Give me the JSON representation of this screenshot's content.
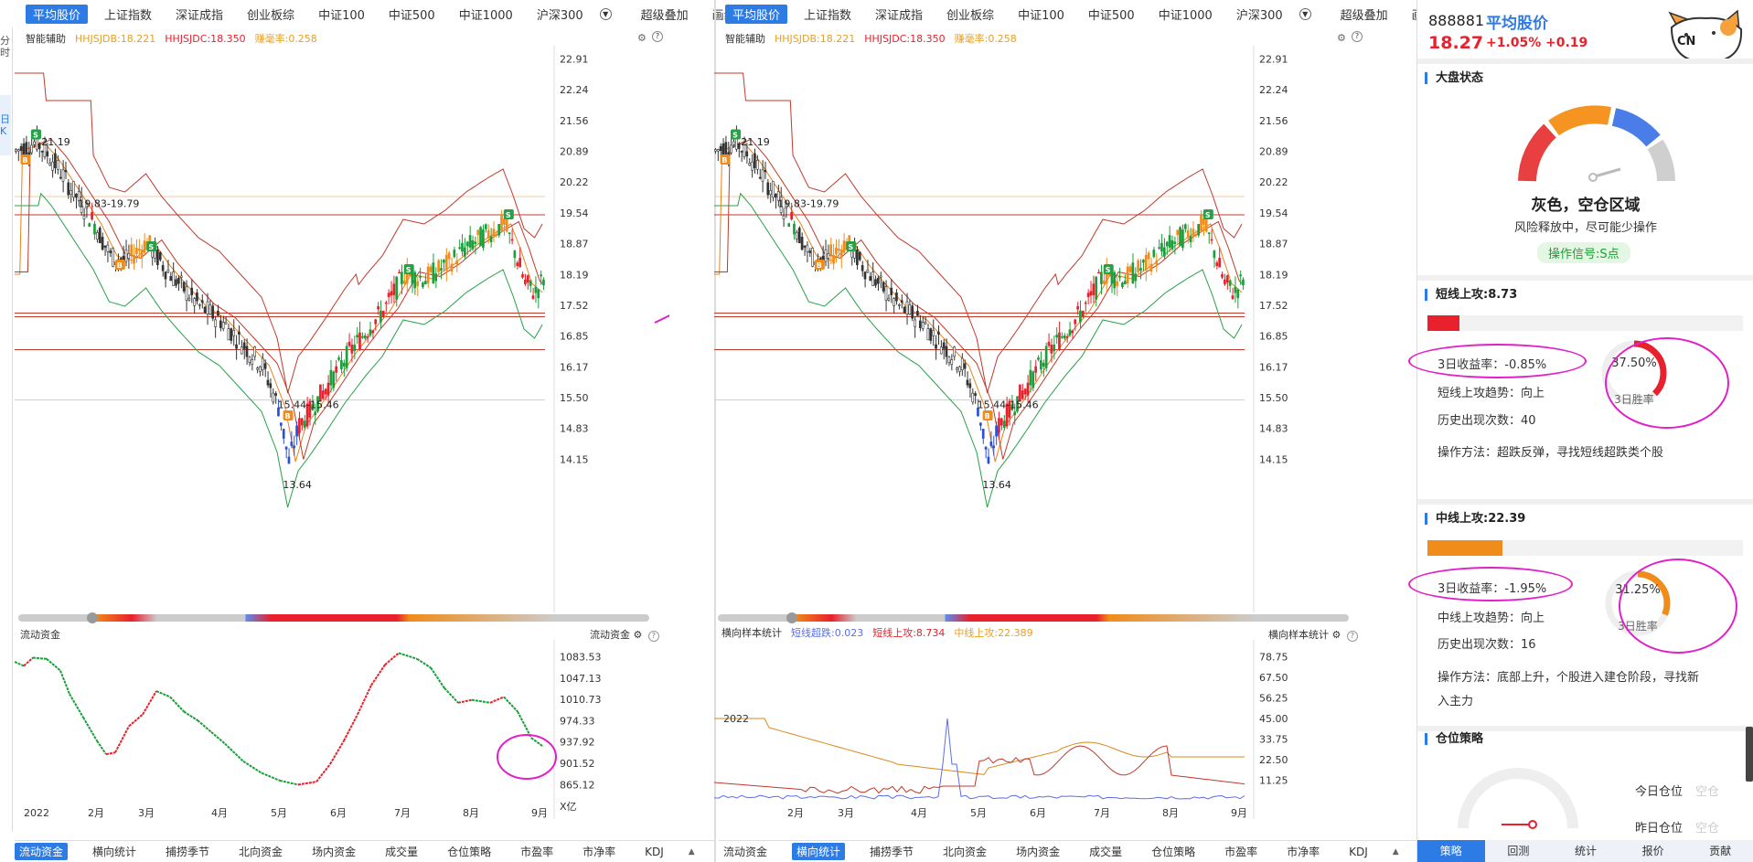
{
  "left_strip": {
    "fen_shi": "分时",
    "ri_k": "日K"
  },
  "panel1": {
    "tabs": [
      "平均股价",
      "上证指数",
      "深证成指",
      "创业板综",
      "中证100",
      "中证500",
      "中证1000",
      "沪深300"
    ],
    "extra": [
      "超级叠加",
      "画线"
    ],
    "indicator": {
      "name": "智能辅助",
      "a": "HHJSJDB:18.221",
      "b": "HHJSJDC:18.350",
      "c": "赚毫率:0.258"
    },
    "price_ticks": [
      "22.91",
      "22.24",
      "21.56",
      "20.89",
      "20.22",
      "19.54",
      "18.87",
      "18.19",
      "17.52",
      "16.85",
      "16.17",
      "15.50",
      "14.83",
      "14.15"
    ],
    "annotations": {
      "high": "21.19",
      "range1": "19.83-19.79",
      "range2": "15.44-15.46",
      "low": "13.64"
    },
    "sub_title_left": "流动资金",
    "sub_title_right": "流动资金",
    "sub_ticks": [
      "1083.53",
      "1047.13",
      "1010.73",
      "974.33",
      "937.92",
      "901.52",
      "865.12",
      "X亿"
    ],
    "months": [
      "2022",
      "2月",
      "3月",
      "4月",
      "5月",
      "6月",
      "7月",
      "8月",
      "9月"
    ],
    "bottom_tabs": [
      "流动资金",
      "横向统计",
      "捕捞季节",
      "北向资金",
      "场内资金",
      "成交量",
      "仓位策略",
      "市盈率",
      "市净率",
      "KDJ"
    ]
  },
  "panel2": {
    "tabs": [
      "平均股价",
      "上证指数",
      "深证成指",
      "创业板综",
      "中证100",
      "中证500",
      "中证1000",
      "沪深300"
    ],
    "extra": [
      "超级叠加",
      "画线"
    ],
    "indicator": {
      "name": "智能辅助",
      "a": "HHJSJDB:18.221",
      "b": "HHJSJDC:18.350",
      "c": "赚毫率:0.258"
    },
    "price_ticks": [
      "22.91",
      "22.24",
      "21.56",
      "20.89",
      "20.22",
      "19.54",
      "18.87",
      "18.19",
      "17.52",
      "16.85",
      "16.17",
      "15.50",
      "14.83",
      "14.15"
    ],
    "annotations": {
      "high": "21.19",
      "range1": "19.83-19.79",
      "range2": "15.44-15.46",
      "low": "13.64"
    },
    "sub_title_left": "横向样本统计",
    "sub_series": {
      "a": "短线超跌:0.023",
      "b": "短线上攻:8.734",
      "c": "中线上攻:22.389"
    },
    "sub_title_right": "横向样本统计",
    "sub_ticks": [
      "78.75",
      "67.50",
      "56.25",
      "45.00",
      "33.75",
      "22.50",
      "11.25"
    ],
    "months": [
      "2022",
      "2月",
      "3月",
      "4月",
      "5月",
      "6月",
      "7月",
      "8月",
      "9月"
    ],
    "bottom_tabs": [
      "流动资金",
      "横向统计",
      "捕捞季节",
      "北向资金",
      "场内资金",
      "成交量",
      "仓位策略",
      "市盈率",
      "市净率",
      "KDJ"
    ]
  },
  "right": {
    "code": "888881",
    "name": "平均股价",
    "price": "18.27",
    "pct": "+1.05%",
    "chg": "+0.19",
    "market_title": "大盘状态",
    "status": "灰色，空仓区域",
    "status_desc": "风险释放中，尽可能少操作",
    "signal": "操作信号:S点",
    "short": {
      "title": "短线上攻:8.73",
      "ret": "3日收益率：-0.85%",
      "trend": "短线上攻趋势：向上",
      "count": "历史出现次数：40",
      "method": "操作方法：超跌反弹，寻找短线超跌类个股",
      "win": "37.50%",
      "win_label": "3日胜率",
      "win_value": 0.375
    },
    "mid": {
      "title": "中线上攻:22.39",
      "ret": "3日收益率：-1.95%",
      "trend": "中线上攻趋势：向上",
      "count": "历史出现次数：16",
      "method1": "操作方法：底部上升，个股进入建仓阶段，寻找新",
      "method2": "入主力",
      "win": "31.25%",
      "win_label": "3日胜率",
      "win_value": 0.3125
    },
    "pos_title": "仓位策略",
    "today": "今日仓位",
    "today_val": "空仓",
    "yest": "昨日仓位",
    "yest_val": "空仓",
    "bottom_tabs": [
      "策略",
      "回测",
      "统计",
      "报价",
      "贡献"
    ],
    "logo": "CN"
  },
  "colors": {
    "accent": "#2d7be5",
    "up": "#e8212c",
    "down": "#1a9e3a",
    "orange": "#f08c1a",
    "magenta": "#e020c8"
  }
}
